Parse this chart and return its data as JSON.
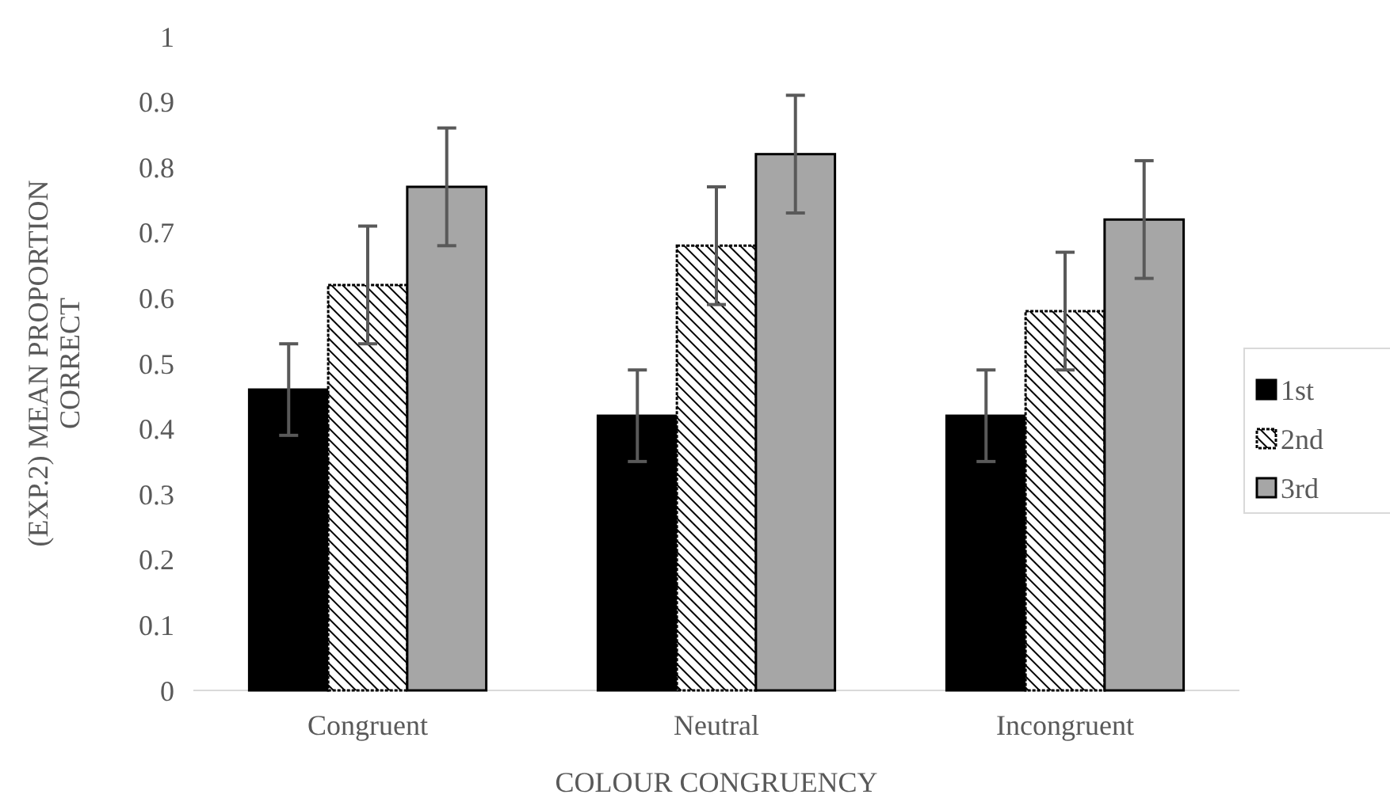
{
  "chart_data": {
    "type": "bar",
    "categories": [
      "Congruent",
      "Neutral",
      "Incongruent"
    ],
    "xlabel": "COLOUR CONGRUENCY",
    "ylabel": "(EXP.2) MEAN PROPORTION CORRECT",
    "ylim": [
      0,
      1
    ],
    "yticks": [
      0,
      0.1,
      0.2,
      0.3,
      0.4,
      0.5,
      0.6,
      0.7,
      0.8,
      0.9,
      1
    ],
    "grid": false,
    "legend": "right",
    "series": [
      {
        "name": "1st",
        "color": "#000000",
        "values": [
          0.46,
          0.42,
          0.42
        ],
        "errors": [
          0.07,
          0.07,
          0.07
        ]
      },
      {
        "name": "2nd",
        "color": "#000000",
        "values": [
          0.62,
          0.68,
          0.58
        ],
        "errors": [
          0.09,
          0.09,
          0.09
        ]
      },
      {
        "name": "3rd",
        "color": "#a6a6a6",
        "values": [
          0.77,
          0.82,
          0.72
        ],
        "errors": [
          0.09,
          0.09,
          0.09
        ]
      }
    ]
  }
}
